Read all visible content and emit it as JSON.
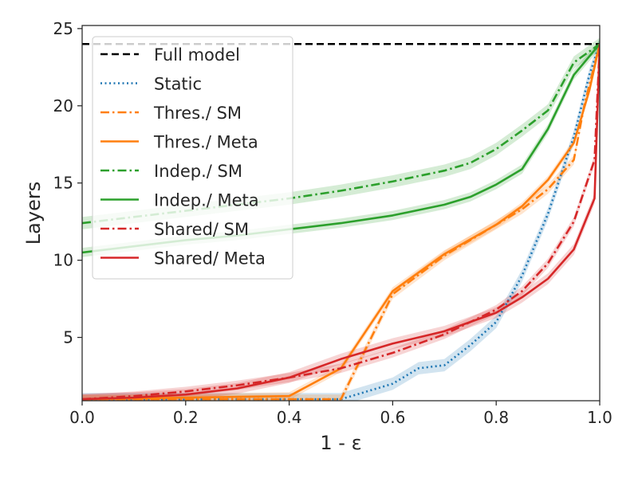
{
  "chart_data": {
    "type": "line",
    "title": "",
    "xlabel": "1 - ε",
    "ylabel": "Layers",
    "xlim": [
      0.0,
      1.0
    ],
    "ylim": [
      0.9,
      25.2
    ],
    "xticks": [
      "0.0",
      "0.2",
      "0.4",
      "0.6",
      "0.8",
      "1.0"
    ],
    "xtick_values": [
      0.0,
      0.2,
      0.4,
      0.6,
      0.8,
      1.0
    ],
    "yticks": [
      "5",
      "10",
      "15",
      "20",
      "25"
    ],
    "ytick_values": [
      5,
      10,
      15,
      20,
      25
    ],
    "grid": false,
    "legend_position": "upper-left",
    "series": [
      {
        "name": "Full model",
        "color": "#000000",
        "dash": "dashed",
        "x": [
          0.0,
          1.0
        ],
        "y": [
          24,
          24
        ]
      },
      {
        "name": "Static",
        "color": "#1f77b4",
        "dash": "dotted",
        "x": [
          0.0,
          0.4,
          0.5,
          0.55,
          0.6,
          0.65,
          0.7,
          0.75,
          0.8,
          0.85,
          0.9,
          0.95,
          0.98,
          1.0
        ],
        "y": [
          1,
          1,
          1,
          1.5,
          2.0,
          3.0,
          3.2,
          4.5,
          6.0,
          9.0,
          13.0,
          18.0,
          22.0,
          24.0
        ],
        "band": 0.4
      },
      {
        "name": "Thres./ SM",
        "color": "#ff7f0e",
        "dash": "dashdot",
        "x": [
          0.0,
          0.5,
          0.6,
          0.7,
          0.8,
          0.85,
          0.9,
          0.95,
          0.97,
          1.0
        ],
        "y": [
          1,
          1,
          7.8,
          10.3,
          12.3,
          13.3,
          14.6,
          16.5,
          20.0,
          24.0
        ],
        "band": 0.3
      },
      {
        "name": "Thres./ Meta",
        "color": "#ff7f0e",
        "dash": "solid",
        "x": [
          0.0,
          0.4,
          0.5,
          0.6,
          0.7,
          0.8,
          0.85,
          0.9,
          0.95,
          0.98,
          1.0
        ],
        "y": [
          1,
          1.2,
          3.0,
          8.0,
          10.4,
          12.3,
          13.5,
          15.2,
          17.6,
          21.0,
          24.0
        ],
        "band": 0.25
      },
      {
        "name": "Indep./ SM",
        "color": "#2ca02c",
        "dash": "dashdot",
        "x": [
          0.0,
          0.1,
          0.2,
          0.3,
          0.4,
          0.5,
          0.6,
          0.7,
          0.75,
          0.8,
          0.85,
          0.9,
          0.95,
          1.0
        ],
        "y": [
          12.4,
          12.8,
          13.2,
          13.6,
          14.0,
          14.5,
          15.1,
          15.8,
          16.3,
          17.2,
          18.4,
          19.7,
          22.8,
          24.0
        ],
        "band": 0.4
      },
      {
        "name": "Indep./ Meta",
        "color": "#2ca02c",
        "dash": "solid",
        "x": [
          0.0,
          0.1,
          0.2,
          0.3,
          0.4,
          0.5,
          0.6,
          0.7,
          0.75,
          0.8,
          0.85,
          0.9,
          0.95,
          1.0
        ],
        "y": [
          10.5,
          10.9,
          11.3,
          11.6,
          12.0,
          12.4,
          12.9,
          13.6,
          14.1,
          14.9,
          15.9,
          18.5,
          22.0,
          24.0
        ],
        "band": 0.3
      },
      {
        "name": "Shared/ SM",
        "color": "#d62728",
        "dash": "dashdot",
        "x": [
          0.0,
          0.1,
          0.2,
          0.3,
          0.4,
          0.5,
          0.6,
          0.7,
          0.8,
          0.85,
          0.9,
          0.95,
          0.99,
          1.0
        ],
        "y": [
          1.0,
          1.2,
          1.5,
          1.9,
          2.4,
          3.0,
          4.0,
          5.2,
          6.8,
          8.0,
          9.8,
          12.5,
          16.5,
          24.0
        ],
        "band": 0.3
      },
      {
        "name": "Shared/ Meta",
        "color": "#d62728",
        "dash": "solid",
        "x": [
          0.0,
          0.1,
          0.2,
          0.3,
          0.4,
          0.5,
          0.6,
          0.7,
          0.8,
          0.85,
          0.9,
          0.95,
          0.99,
          1.0
        ],
        "y": [
          1.0,
          1.1,
          1.3,
          1.7,
          2.4,
          3.6,
          4.6,
          5.4,
          6.6,
          7.6,
          8.8,
          10.7,
          14.0,
          24.0
        ],
        "band": 0.35
      }
    ]
  }
}
